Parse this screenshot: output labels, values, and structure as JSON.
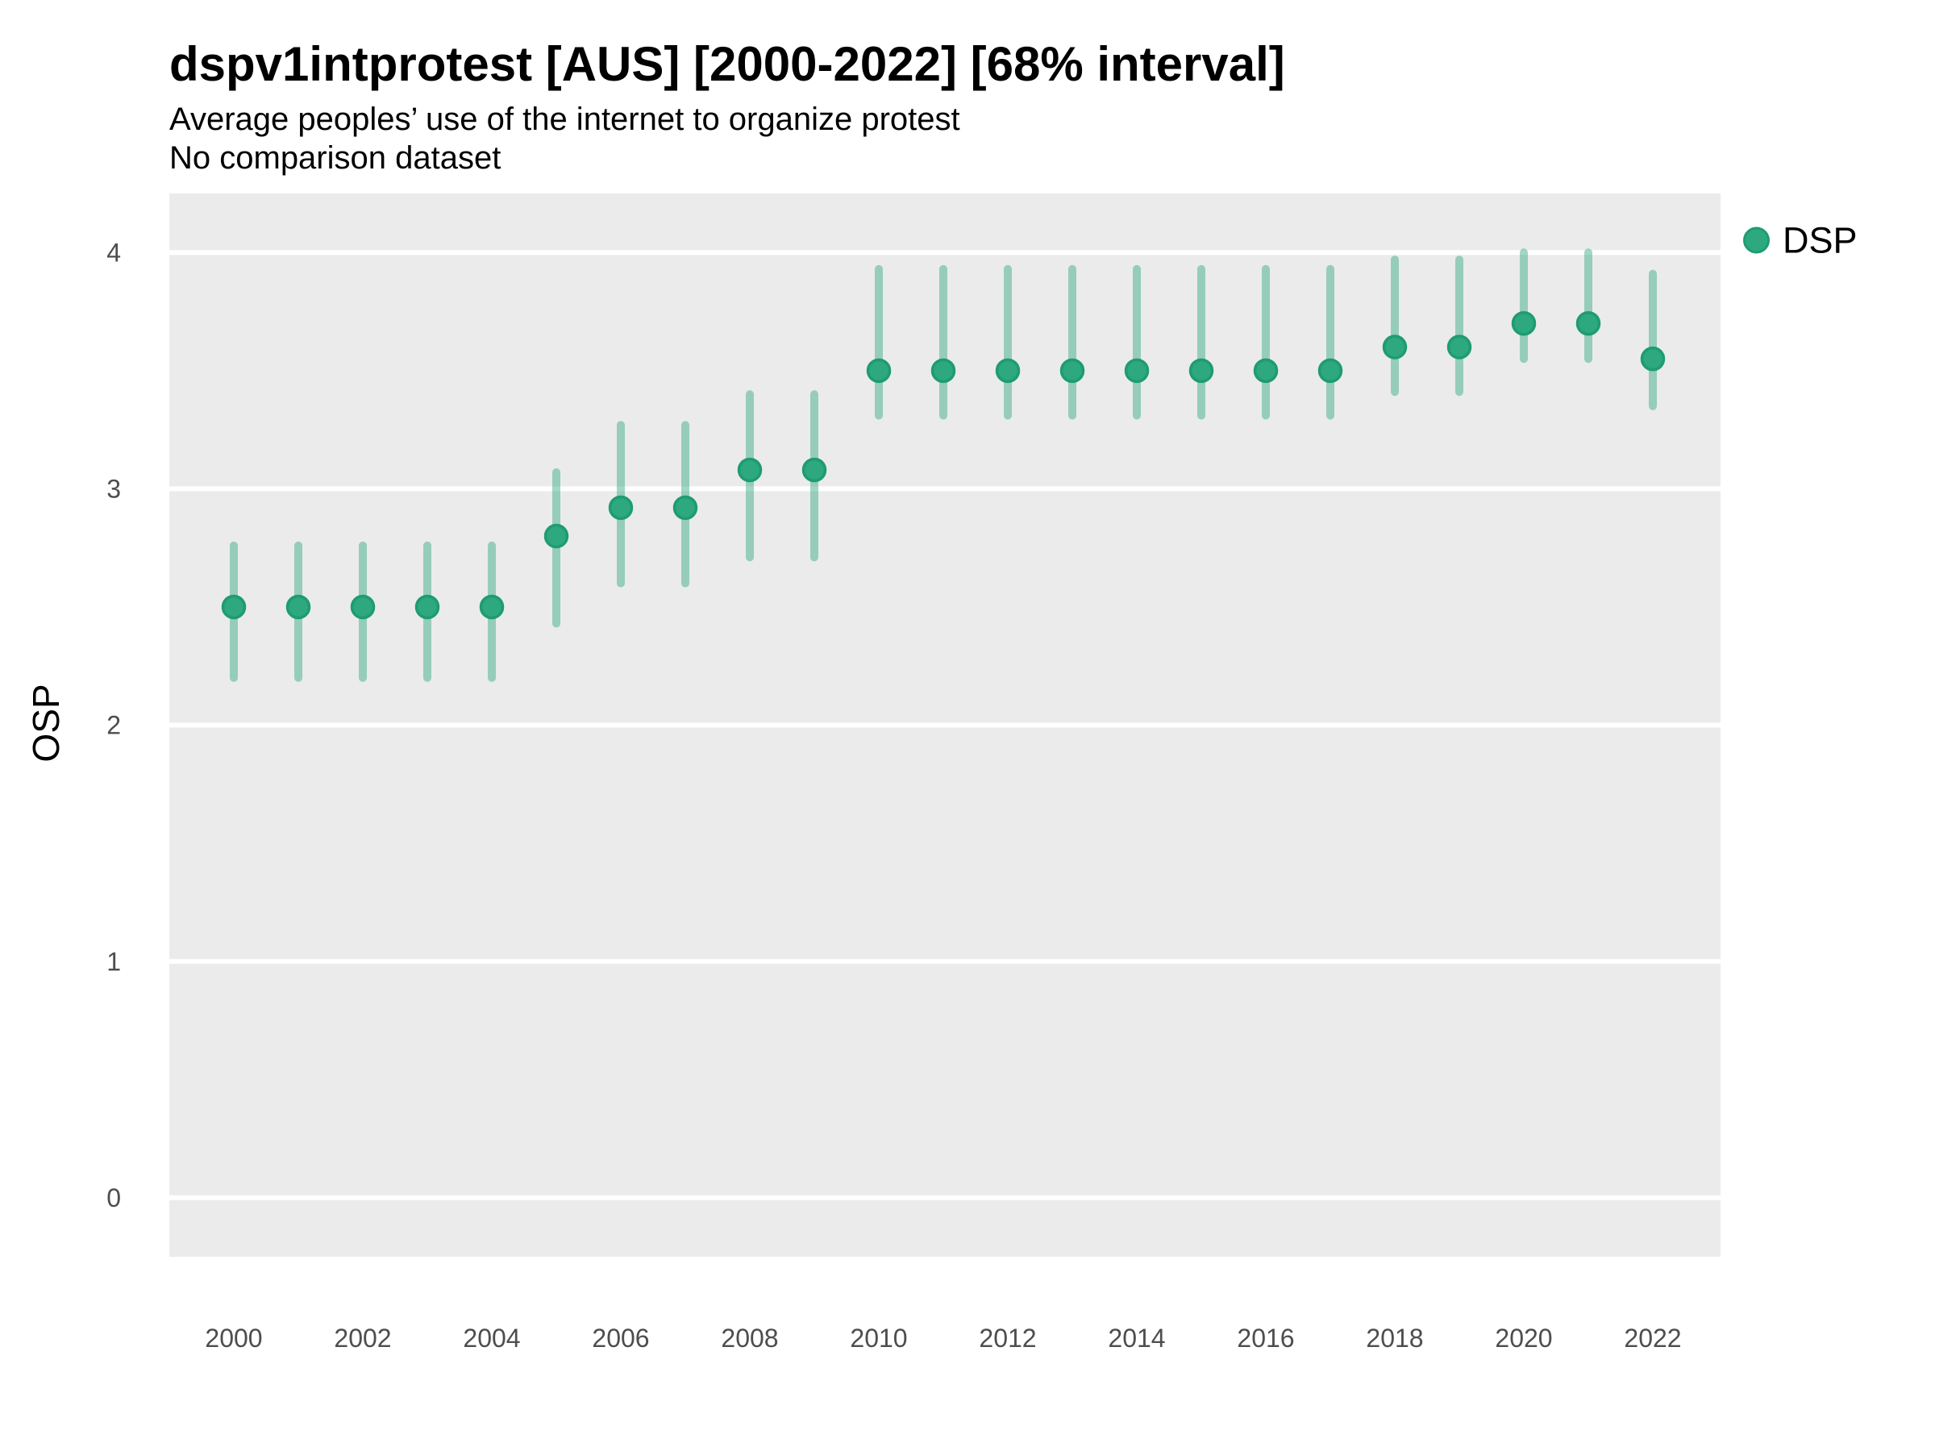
{
  "chart_data": {
    "type": "scatter",
    "title": "dspv1intprotest [AUS] [2000-2022] [68% interval]",
    "subtitle": "Average peoples’ use of the internet to organize protest",
    "note": "No comparison dataset",
    "xlabel": "",
    "ylabel": "OSP",
    "interval_label": "68% interval",
    "legend_position": "right",
    "grid": "horizontal-major-only",
    "x": [
      2000,
      2001,
      2002,
      2003,
      2004,
      2005,
      2006,
      2007,
      2008,
      2009,
      2010,
      2011,
      2012,
      2013,
      2014,
      2015,
      2016,
      2017,
      2018,
      2019,
      2020,
      2021,
      2022
    ],
    "xticks": [
      2000,
      2002,
      2004,
      2006,
      2008,
      2010,
      2012,
      2014,
      2016,
      2018,
      2020,
      2022
    ],
    "yticks": [
      0,
      1,
      2,
      3,
      4
    ],
    "ylim": [
      -0.25,
      4.25
    ],
    "series": [
      {
        "name": "DSP",
        "values": [
          2.5,
          2.5,
          2.5,
          2.5,
          2.5,
          2.8,
          2.92,
          2.92,
          3.08,
          3.08,
          3.5,
          3.5,
          3.5,
          3.5,
          3.5,
          3.5,
          3.5,
          3.5,
          3.6,
          3.6,
          3.7,
          3.7,
          3.55
        ],
        "interval_low": [
          2.2,
          2.2,
          2.2,
          2.2,
          2.2,
          2.43,
          2.6,
          2.6,
          2.71,
          2.71,
          3.31,
          3.31,
          3.31,
          3.31,
          3.31,
          3.31,
          3.31,
          3.31,
          3.41,
          3.41,
          3.55,
          3.55,
          3.35
        ],
        "interval_high": [
          2.76,
          2.76,
          2.76,
          2.76,
          2.76,
          3.07,
          3.27,
          3.27,
          3.4,
          3.4,
          3.93,
          3.93,
          3.93,
          3.93,
          3.93,
          3.93,
          3.93,
          3.93,
          3.97,
          3.97,
          4.0,
          4.0,
          3.91
        ]
      }
    ],
    "colors": {
      "point_fill": "#2EA87E",
      "point_stroke": "#1E9C70",
      "interval_bar": "rgba(46,168,126,0.45)",
      "panel_bg": "#EBEBEB",
      "gridline": "#FFFFFF",
      "tick_text": "#4D4D4D"
    }
  }
}
